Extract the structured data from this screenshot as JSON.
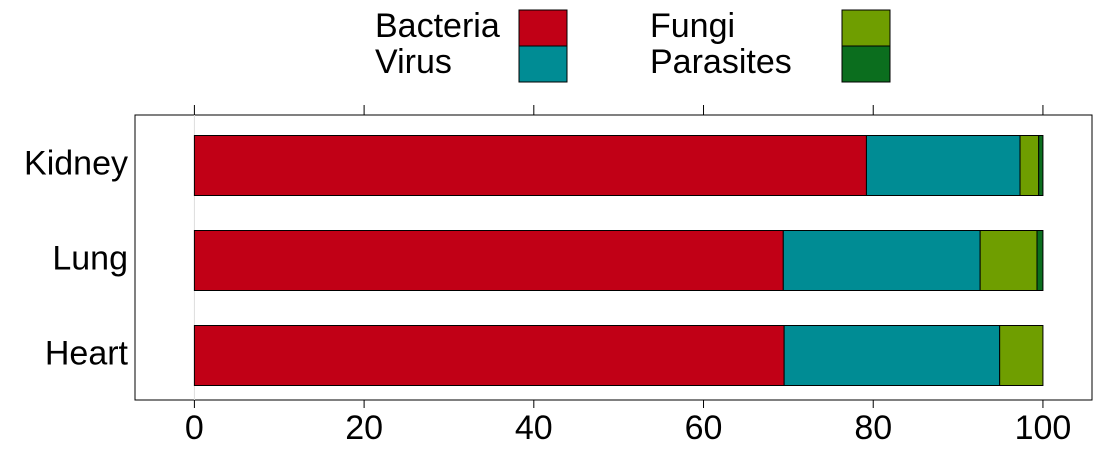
{
  "chart_data": {
    "type": "stacked-barh",
    "categories": [
      "Kidney",
      "Lung",
      "Heart"
    ],
    "series": [
      {
        "name": "Bacteria",
        "color": "#c10016",
        "values": [
          79.2,
          69.4,
          69.5
        ]
      },
      {
        "name": "Virus",
        "color": "#008c94",
        "values": [
          18.1,
          23.2,
          25.4
        ]
      },
      {
        "name": "Fungi",
        "color": "#6f9e00",
        "values": [
          2.2,
          6.7,
          5.1
        ]
      },
      {
        "name": "Parasites",
        "color": "#0b6e1e",
        "values": [
          0.5,
          0.7,
          0
        ]
      }
    ],
    "xlim": [
      -7,
      105.9
    ],
    "xticks": [
      0,
      20,
      40,
      60,
      80,
      100
    ]
  }
}
